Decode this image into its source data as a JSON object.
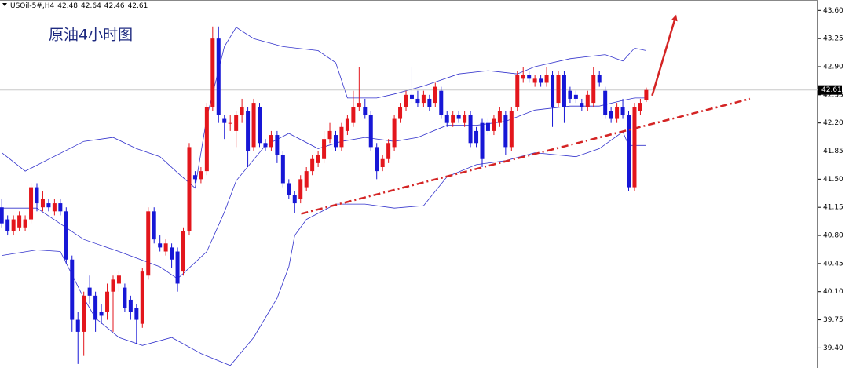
{
  "chart_data": {
    "type": "candlestick",
    "title": "原油4小时图",
    "header": {
      "symbol": "USOil-5#,H4",
      "ohlc": [
        42.48,
        42.64,
        42.46,
        42.61
      ]
    },
    "up_color": "#e3161c",
    "down_color": "#1717d6",
    "band_color": "#3333cc",
    "trend_color": "#d42424",
    "xlim": [
      -0.3,
      139.1
    ],
    "ylim": [
      39.15,
      43.73
    ],
    "yticks": [
      {
        "value": 39.4,
        "label": "39.40"
      },
      39.75,
      {
        "value": 40.1,
        "label": "40.10"
      },
      40.45,
      {
        "value": 40.8,
        "label": "40.80"
      },
      41.15,
      {
        "value": 41.5,
        "label": "41.50"
      },
      41.85,
      {
        "value": 42.2,
        "label": "42.20"
      },
      42.55,
      {
        "value": 42.9,
        "label": "42.90"
      },
      43.25,
      {
        "value": 43.6,
        "label": "43.60"
      }
    ],
    "last_price": {
      "value": 42.61,
      "label": "42.61"
    },
    "open": [
      41.15,
      41.0,
      40.85,
      40.9,
      40.9,
      41.0,
      41.4,
      41.15,
      41.2,
      41.1,
      41.2,
      41.1,
      40.5,
      39.75,
      39.6,
      40.15,
      40.05,
      39.85,
      39.85,
      40.1,
      40.2,
      40.15,
      40.0,
      39.9,
      39.7,
      40.3,
      41.1,
      40.7,
      40.6,
      40.65,
      40.6,
      40.35,
      40.85,
      41.55,
      41.5,
      41.6,
      42.4,
      43.25,
      42.25,
      42.2,
      42.1,
      42.3,
      42.35,
      41.9,
      42.4,
      41.95,
      41.9,
      42.05,
      41.8,
      41.45,
      41.3,
      41.25,
      41.4,
      41.6,
      41.7,
      41.75,
      42.0,
      42.05,
      41.9,
      42.1,
      42.2,
      42.4,
      42.4,
      42.3,
      41.9,
      41.65,
      41.75,
      41.9,
      42.25,
      42.4,
      42.55,
      42.5,
      42.45,
      42.5,
      42.45,
      42.6,
      42.3,
      42.2,
      42.3,
      42.2,
      42.3,
      42.1,
      42.2,
      42.2,
      42.1,
      42.2,
      42.3,
      41.9,
      42.4,
      42.75,
      42.8,
      42.7,
      42.75,
      42.7,
      42.8,
      42.45,
      42.8,
      42.6,
      42.55,
      42.45,
      42.4,
      42.45,
      42.8,
      42.6,
      42.35,
      42.25,
      42.4,
      42.3,
      41.4,
      42.35,
      42.48
    ],
    "high": [
      41.25,
      41.05,
      41.05,
      41.1,
      41.05,
      41.45,
      41.45,
      41.35,
      41.25,
      41.25,
      41.25,
      41.15,
      40.55,
      39.85,
      40.1,
      40.3,
      40.1,
      39.95,
      40.2,
      40.3,
      40.35,
      40.2,
      40.05,
      39.95,
      40.4,
      41.15,
      41.15,
      40.8,
      40.75,
      40.7,
      40.65,
      40.9,
      41.95,
      41.6,
      41.65,
      42.45,
      43.4,
      43.4,
      42.3,
      42.3,
      42.35,
      42.5,
      42.4,
      42.5,
      42.45,
      42.0,
      42.1,
      42.1,
      41.85,
      41.5,
      41.35,
      41.55,
      41.65,
      41.8,
      41.85,
      42.1,
      42.2,
      42.1,
      42.2,
      42.3,
      42.6,
      42.9,
      42.5,
      42.35,
      41.95,
      41.8,
      42.0,
      42.3,
      42.45,
      42.6,
      42.9,
      42.6,
      42.6,
      42.55,
      42.7,
      42.65,
      42.35,
      42.35,
      42.35,
      42.35,
      42.35,
      42.15,
      42.25,
      42.25,
      42.3,
      42.4,
      42.35,
      42.4,
      42.85,
      42.9,
      42.85,
      42.8,
      42.8,
      42.9,
      42.85,
      42.85,
      42.85,
      42.65,
      42.6,
      42.5,
      42.6,
      42.9,
      42.85,
      42.65,
      42.4,
      42.45,
      42.5,
      42.35,
      42.45,
      42.5,
      42.64
    ],
    "low": [
      40.9,
      40.8,
      40.8,
      40.85,
      40.85,
      40.95,
      41.1,
      41.1,
      41.1,
      41.05,
      41.05,
      40.45,
      39.6,
      39.2,
      39.3,
      39.95,
      39.6,
      39.7,
      39.75,
      39.6,
      40.1,
      39.85,
      39.75,
      39.45,
      39.65,
      40.25,
      40.7,
      40.6,
      40.55,
      40.4,
      40.1,
      40.3,
      40.8,
      41.45,
      41.45,
      41.55,
      42.35,
      42.2,
      42.0,
      42.1,
      41.9,
      42.2,
      41.65,
      41.85,
      41.9,
      41.85,
      41.85,
      41.7,
      41.4,
      41.25,
      41.08,
      41.2,
      41.35,
      41.55,
      41.65,
      41.7,
      41.95,
      41.85,
      41.85,
      42.05,
      42.15,
      42.35,
      42.25,
      41.85,
      41.5,
      41.6,
      41.7,
      41.85,
      42.2,
      42.35,
      42.45,
      42.4,
      42.4,
      42.35,
      42.4,
      42.25,
      42.15,
      42.15,
      42.2,
      42.15,
      41.9,
      41.9,
      41.65,
      42.05,
      42.05,
      42.15,
      41.8,
      41.85,
      42.35,
      42.7,
      42.7,
      42.65,
      42.65,
      42.65,
      42.15,
      42.4,
      42.2,
      42.45,
      42.45,
      42.35,
      42.35,
      42.4,
      42.65,
      42.25,
      42.2,
      42.2,
      42.25,
      41.35,
      41.35,
      42.3,
      42.46
    ],
    "close": [
      40.95,
      40.85,
      41.0,
      41.05,
      41.0,
      41.4,
      41.2,
      41.25,
      41.15,
      41.2,
      41.1,
      40.5,
      39.75,
      39.6,
      40.05,
      40.05,
      39.75,
      39.8,
      40.1,
      40.25,
      40.3,
      39.9,
      39.85,
      39.75,
      40.35,
      41.1,
      40.75,
      40.65,
      40.7,
      40.5,
      40.2,
      40.85,
      41.9,
      41.5,
      41.6,
      42.4,
      43.25,
      42.3,
      42.2,
      42.2,
      42.3,
      42.4,
      41.85,
      42.45,
      41.95,
      41.9,
      42.05,
      41.8,
      41.45,
      41.3,
      41.2,
      41.5,
      41.6,
      41.75,
      41.8,
      42.0,
      42.1,
      41.9,
      42.15,
      42.25,
      42.4,
      42.45,
      42.3,
      41.9,
      41.6,
      41.75,
      41.95,
      42.25,
      42.4,
      42.55,
      42.5,
      42.45,
      42.55,
      42.4,
      42.65,
      42.3,
      42.2,
      42.3,
      42.25,
      42.3,
      41.95,
      41.95,
      41.75,
      42.1,
      42.25,
      42.35,
      41.9,
      42.35,
      42.8,
      42.8,
      42.75,
      42.75,
      42.7,
      42.8,
      42.4,
      42.8,
      42.4,
      42.5,
      42.5,
      42.4,
      42.55,
      42.8,
      42.7,
      42.3,
      42.25,
      42.4,
      42.3,
      41.4,
      42.4,
      42.45,
      42.61
    ],
    "bands": {
      "upper": {
        "x": [
          0,
          4,
          14,
          19,
          23,
          27,
          30,
          33,
          35,
          38,
          40,
          43,
          48,
          54,
          57,
          59,
          64,
          67,
          72,
          78,
          83,
          88,
          91,
          97,
          103,
          106,
          108,
          110
        ],
        "y": [
          41.83,
          41.6,
          41.97,
          42.02,
          41.88,
          41.78,
          41.58,
          41.39,
          42.27,
          43.15,
          43.39,
          43.25,
          43.15,
          43.1,
          42.95,
          42.51,
          42.51,
          42.56,
          42.66,
          42.81,
          42.85,
          42.81,
          42.9,
          43.0,
          43.05,
          42.97,
          43.13,
          43.1
        ]
      },
      "middle": {
        "x": [
          0,
          6,
          14,
          20,
          27,
          30,
          35,
          38,
          40,
          45,
          49,
          54,
          58,
          62,
          67,
          71,
          76,
          81,
          86,
          91,
          97,
          102,
          106,
          108,
          110
        ],
        "y": [
          41.14,
          41.14,
          40.75,
          40.6,
          40.41,
          40.26,
          40.6,
          41.09,
          41.48,
          41.92,
          42.07,
          41.88,
          41.97,
          42.02,
          41.97,
          42.02,
          42.17,
          42.17,
          42.22,
          42.36,
          42.41,
          42.41,
          42.48,
          42.51,
          42.51
        ]
      },
      "lower": {
        "x": [
          0,
          6,
          10,
          14,
          16,
          20,
          24,
          29,
          34,
          39,
          43,
          47,
          49,
          50,
          52,
          57,
          62,
          67,
          72,
          76,
          81,
          86,
          91,
          98,
          102,
          106,
          107,
          110
        ],
        "y": [
          40.55,
          40.62,
          40.6,
          40.02,
          39.77,
          39.53,
          39.43,
          39.53,
          39.33,
          39.18,
          39.53,
          40.02,
          40.41,
          40.8,
          41.0,
          41.19,
          41.19,
          41.14,
          41.17,
          41.53,
          41.68,
          41.73,
          41.83,
          41.78,
          41.88,
          42.09,
          41.92,
          41.92
        ]
      }
    },
    "trendline": {
      "x": [
        51.1,
        127.7
      ],
      "y": [
        41.07,
        42.5
      ]
    },
    "arrow": {
      "x": [
        111.0,
        115.0
      ],
      "y": [
        42.54,
        43.52
      ]
    }
  }
}
